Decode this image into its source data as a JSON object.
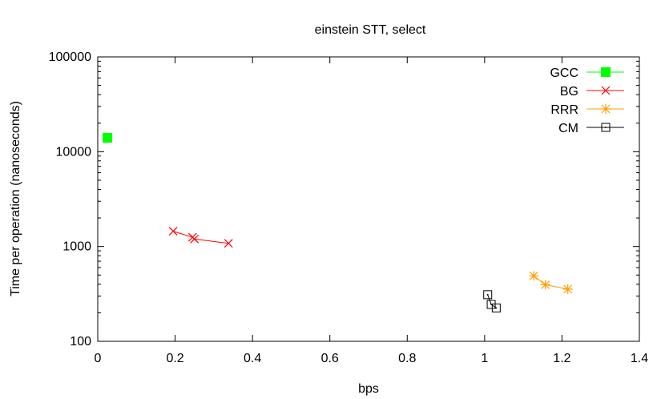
{
  "chart_data": {
    "type": "line",
    "title": "einstein STT, select",
    "xlabel": "bps",
    "ylabel": "Time per operation (nanoseconds)",
    "xlim": [
      0,
      1.4
    ],
    "ylim": [
      100,
      100000
    ],
    "y_scale": "log",
    "x_ticks": [
      0,
      0.2,
      0.4,
      0.6,
      0.8,
      1,
      1.2,
      1.4
    ],
    "x_tick_labels": [
      "0",
      "0.2",
      "0.4",
      "0.6",
      "0.8",
      "1",
      "1.2",
      "1.4"
    ],
    "y_ticks": [
      100,
      1000,
      10000,
      100000
    ],
    "y_tick_labels": [
      "100",
      "1000",
      "10000",
      "100000"
    ],
    "grid": false,
    "legend_position": "top-right",
    "series": [
      {
        "name": "GCC",
        "color": "#00ff00",
        "marker": "filled-square",
        "points": [
          [
            0.025,
            14000
          ]
        ]
      },
      {
        "name": "BG",
        "color": "#ff0000",
        "marker": "x",
        "points": [
          [
            0.195,
            1450
          ],
          [
            0.245,
            1250
          ],
          [
            0.25,
            1200
          ],
          [
            0.338,
            1080
          ]
        ]
      },
      {
        "name": "RRR",
        "color": "#ffa000",
        "marker": "star",
        "points": [
          [
            1.127,
            490
          ],
          [
            1.157,
            395
          ],
          [
            1.215,
            355
          ]
        ]
      },
      {
        "name": "CM",
        "color": "#000000",
        "marker": "dotted-square",
        "points": [
          [
            1.008,
            310
          ],
          [
            1.017,
            245
          ],
          [
            1.03,
            225
          ]
        ]
      }
    ]
  }
}
